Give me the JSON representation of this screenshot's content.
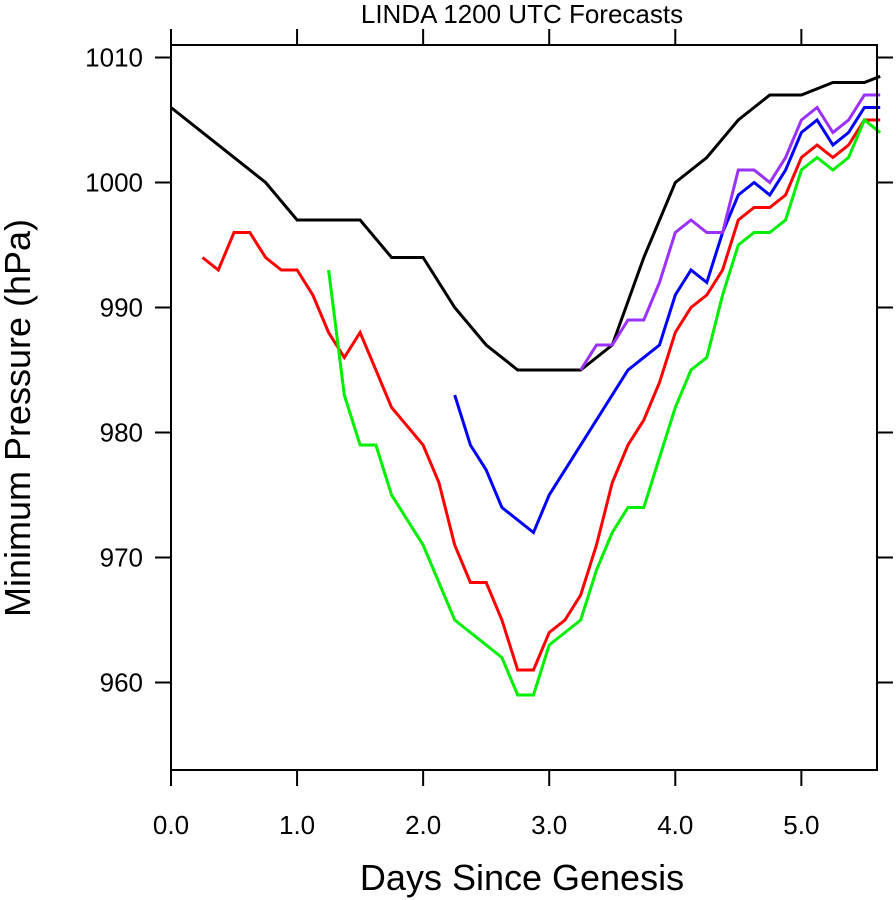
{
  "chart_data": {
    "type": "line",
    "title": "LINDA 1200 UTC Forecasts",
    "xlabel": "Days Since Genesis",
    "ylabel": "Minimum Pressure (hPa)",
    "xlim": [
      0,
      5.6
    ],
    "ylim": [
      953,
      1011
    ],
    "x_ticks": [
      {
        "value": 0,
        "label": "0.0"
      },
      {
        "value": 1,
        "label": "1.0"
      },
      {
        "value": 2,
        "label": "2.0"
      },
      {
        "value": 3,
        "label": "3.0"
      },
      {
        "value": 4,
        "label": "4.0"
      },
      {
        "value": 5,
        "label": "5.0"
      }
    ],
    "y_ticks": [
      {
        "value": 960,
        "label": "960"
      },
      {
        "value": 970,
        "label": "970"
      },
      {
        "value": 980,
        "label": "980"
      },
      {
        "value": 990,
        "label": "990"
      },
      {
        "value": 1000,
        "label": "1000"
      },
      {
        "value": 1010,
        "label": "1010"
      }
    ],
    "grid": false,
    "series": [
      {
        "color": "#000000",
        "points": [
          [
            0,
            1006
          ],
          [
            0.75,
            1000
          ],
          [
            1.0,
            997
          ],
          [
            1.5,
            997
          ],
          [
            1.75,
            994
          ],
          [
            2.0,
            994
          ],
          [
            2.25,
            990
          ],
          [
            2.5,
            987
          ],
          [
            2.75,
            985
          ],
          [
            3.0,
            985
          ],
          [
            3.25,
            985
          ],
          [
            3.5,
            987
          ],
          [
            3.75,
            994
          ],
          [
            4.0,
            1000
          ],
          [
            4.25,
            1002
          ],
          [
            4.5,
            1005
          ],
          [
            4.75,
            1007
          ],
          [
            5.0,
            1007
          ],
          [
            5.25,
            1008
          ],
          [
            5.5,
            1008
          ],
          [
            5.625,
            1008.5
          ]
        ]
      },
      {
        "color": "#ff0000",
        "points": [
          [
            0.25,
            994
          ],
          [
            0.375,
            993
          ],
          [
            0.5,
            996
          ],
          [
            0.625,
            996
          ],
          [
            0.75,
            994
          ],
          [
            0.875,
            993
          ],
          [
            1.0,
            993
          ],
          [
            1.125,
            991
          ],
          [
            1.25,
            988
          ],
          [
            1.375,
            986
          ],
          [
            1.5,
            988
          ],
          [
            1.625,
            985
          ],
          [
            1.75,
            982
          ],
          [
            2.0,
            979
          ],
          [
            2.125,
            976
          ],
          [
            2.25,
            971
          ],
          [
            2.375,
            968
          ],
          [
            2.5,
            968
          ],
          [
            2.625,
            965
          ],
          [
            2.75,
            961
          ],
          [
            2.875,
            961
          ],
          [
            3.0,
            964
          ],
          [
            3.125,
            965
          ],
          [
            3.25,
            967
          ],
          [
            3.375,
            971
          ],
          [
            3.5,
            976
          ],
          [
            3.625,
            979
          ],
          [
            3.75,
            981
          ],
          [
            3.875,
            984
          ],
          [
            4.0,
            988
          ],
          [
            4.125,
            990
          ],
          [
            4.25,
            991
          ],
          [
            4.375,
            993
          ],
          [
            4.5,
            997
          ],
          [
            4.625,
            998
          ],
          [
            4.75,
            998
          ],
          [
            4.875,
            999
          ],
          [
            5.0,
            1002
          ],
          [
            5.125,
            1003
          ],
          [
            5.25,
            1002
          ],
          [
            5.375,
            1003
          ],
          [
            5.5,
            1005
          ],
          [
            5.625,
            1005
          ]
        ]
      },
      {
        "color": "#00ee00",
        "points": [
          [
            1.25,
            993
          ],
          [
            1.375,
            983
          ],
          [
            1.5,
            979
          ],
          [
            1.625,
            979
          ],
          [
            1.75,
            975
          ],
          [
            2.0,
            971
          ],
          [
            2.25,
            965
          ],
          [
            2.375,
            964
          ],
          [
            2.5,
            963
          ],
          [
            2.625,
            962
          ],
          [
            2.75,
            959
          ],
          [
            2.875,
            959
          ],
          [
            3.0,
            963
          ],
          [
            3.125,
            964
          ],
          [
            3.25,
            965
          ],
          [
            3.375,
            969
          ],
          [
            3.5,
            972
          ],
          [
            3.625,
            974
          ],
          [
            3.75,
            974
          ],
          [
            3.875,
            978
          ],
          [
            4.0,
            982
          ],
          [
            4.125,
            985
          ],
          [
            4.25,
            986
          ],
          [
            4.375,
            991
          ],
          [
            4.5,
            995
          ],
          [
            4.625,
            996
          ],
          [
            4.75,
            996
          ],
          [
            4.875,
            997
          ],
          [
            5.0,
            1001
          ],
          [
            5.125,
            1002
          ],
          [
            5.25,
            1001
          ],
          [
            5.375,
            1002
          ],
          [
            5.5,
            1005
          ],
          [
            5.625,
            1004
          ]
        ]
      },
      {
        "color": "#0000ff",
        "points": [
          [
            2.25,
            983
          ],
          [
            2.375,
            979
          ],
          [
            2.5,
            977
          ],
          [
            2.625,
            974
          ],
          [
            2.875,
            972
          ],
          [
            3.0,
            975
          ],
          [
            3.625,
            985
          ],
          [
            3.875,
            987
          ],
          [
            4.0,
            991
          ],
          [
            4.125,
            993
          ],
          [
            4.25,
            992
          ],
          [
            4.375,
            996
          ],
          [
            4.5,
            999
          ],
          [
            4.625,
            1000
          ],
          [
            4.75,
            999
          ],
          [
            4.875,
            1001
          ],
          [
            5.0,
            1004
          ],
          [
            5.125,
            1005
          ],
          [
            5.25,
            1003
          ],
          [
            5.375,
            1004
          ],
          [
            5.5,
            1006
          ],
          [
            5.625,
            1006
          ]
        ]
      },
      {
        "color": "#9b30ff",
        "points": [
          [
            3.25,
            985
          ],
          [
            3.375,
            987
          ],
          [
            3.5,
            987
          ],
          [
            3.625,
            989
          ],
          [
            3.75,
            989
          ],
          [
            3.875,
            992
          ],
          [
            4.0,
            996
          ],
          [
            4.125,
            997
          ],
          [
            4.25,
            996
          ],
          [
            4.375,
            996
          ],
          [
            4.5,
            1001
          ],
          [
            4.625,
            1001
          ],
          [
            4.75,
            1000
          ],
          [
            4.875,
            1002
          ],
          [
            5.0,
            1005
          ],
          [
            5.125,
            1006
          ],
          [
            5.25,
            1004
          ],
          [
            5.375,
            1005
          ],
          [
            5.5,
            1007
          ],
          [
            5.625,
            1007
          ]
        ]
      }
    ]
  }
}
